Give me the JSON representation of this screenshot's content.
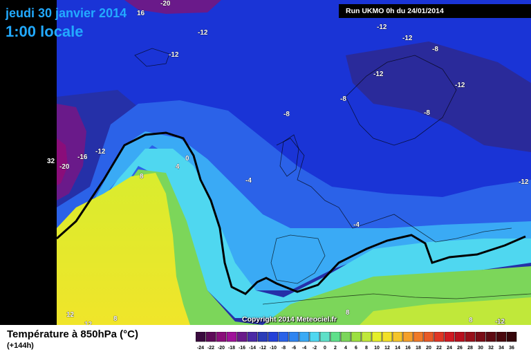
{
  "header": {
    "date": "jeudi 30 janvier 2014",
    "time": "1:00 locale",
    "run": "Run UKMO 0h du 24/01/2014"
  },
  "copyright": "Copyright 2014 Meteociel.fr",
  "caption": {
    "title": "Température à 850hPa (°C)",
    "lead": "(+144h)"
  },
  "map": {
    "colors": {
      "ocean_warm": "#e5ef2a",
      "ocean_mid": "#7cd65a",
      "cool_cyan": "#4fd7f0",
      "cold_blue": "#2b62e8",
      "very_cold": "#1a34d6",
      "deep_cold": "#2530a8",
      "purple": "#6a1a8a",
      "zero_isotherm": "#000000"
    },
    "labels": [
      {
        "text": "16"
      },
      {
        "text": "-20"
      },
      {
        "text": "-12"
      },
      {
        "text": "-12"
      },
      {
        "text": "-12"
      },
      {
        "text": "-12"
      },
      {
        "text": "-8"
      },
      {
        "text": "-12"
      },
      {
        "text": "-8"
      },
      {
        "text": "-12"
      },
      {
        "text": "-8"
      },
      {
        "text": "-8"
      },
      {
        "text": "-12"
      },
      {
        "text": "32"
      },
      {
        "text": "-20"
      },
      {
        "text": "-16"
      },
      {
        "text": "-12"
      },
      {
        "text": "0"
      },
      {
        "text": "4"
      },
      {
        "text": "8"
      },
      {
        "text": "-4"
      },
      {
        "text": "-4"
      },
      {
        "text": "-12"
      },
      {
        "text": "12"
      },
      {
        "text": "12"
      },
      {
        "text": "8"
      },
      {
        "text": "8"
      },
      {
        "text": "8"
      },
      {
        "text": "12"
      }
    ]
  },
  "legend": {
    "values": [
      "-24",
      "-22",
      "-20",
      "-18",
      "-16",
      "-14",
      "-12",
      "-10",
      "-8",
      "-6",
      "-4",
      "-2",
      "0",
      "2",
      "4",
      "6",
      "8",
      "10",
      "12",
      "14",
      "16",
      "18",
      "20",
      "22",
      "24",
      "26",
      "28",
      "30",
      "32",
      "34",
      "36"
    ],
    "colors": [
      "#3a0a3e",
      "#5e0a58",
      "#8a0d7a",
      "#a0129a",
      "#6a1a8a",
      "#4b2aa6",
      "#2a3cb8",
      "#2440d8",
      "#2b62e8",
      "#2f84f0",
      "#3aaaf5",
      "#4fd7f0",
      "#5ee0c8",
      "#5fe08a",
      "#7cd65a",
      "#9ce040",
      "#c0e83a",
      "#e5ef2a",
      "#f2e028",
      "#f5c52a",
      "#f5a02a",
      "#f07a28",
      "#e85a26",
      "#e03624",
      "#d01a22",
      "#b8101e",
      "#98101a",
      "#7a0c16",
      "#5e0a12",
      "#4a080e",
      "#36060a"
    ]
  }
}
